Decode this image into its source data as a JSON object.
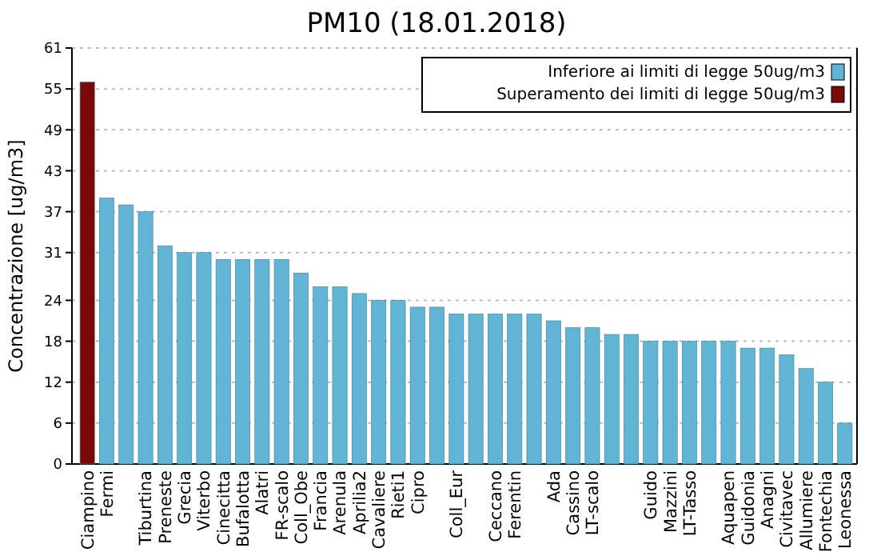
{
  "chart_data": {
    "type": "bar",
    "title": "PM10 (18.01.2018)",
    "ylabel": "Concentrazione [ug/m3]",
    "categories": [
      "Ciampino",
      "Fermi",
      null,
      "Tiburtina",
      "Preneste",
      "Grecia",
      "Viterbo",
      "Cinecitta",
      "Bufalotta",
      "Alatri",
      "FR-scalo",
      "Coll_Obe",
      "Francia",
      "Arenula",
      "Aprilia2",
      "Cavaliere",
      "Rieti1",
      "Cipro",
      null,
      "Coll_Eur",
      null,
      "Ceccano",
      "Ferentin",
      null,
      "Ada",
      "Cassino",
      "LT-scalo",
      null,
      null,
      "Guido",
      "Mazzini",
      "LT-Tasso",
      null,
      "Aquapen",
      "Guidonia",
      "Anagni",
      "Civitavec",
      "Allumiere",
      "Fontechia",
      "Leonessa"
    ],
    "series": [
      {
        "name": "Inferiore ai limiti di legge 50ug/m3",
        "color": "#62b4d4",
        "values": [
          null,
          39,
          38,
          37,
          32,
          31,
          31,
          30,
          30,
          30,
          30,
          28,
          26,
          26,
          25,
          24,
          24,
          23,
          23,
          22,
          22,
          22,
          22,
          22,
          21,
          20,
          20,
          19,
          19,
          18,
          18,
          18,
          18,
          18,
          17,
          17,
          16,
          14,
          12,
          6
        ]
      },
      {
        "name": "Superamento dei limiti di legge 50ug/m3",
        "color": "#7a0a0a",
        "values": [
          56,
          null,
          null,
          null,
          null,
          null,
          null,
          null,
          null,
          null,
          null,
          null,
          null,
          null,
          null,
          null,
          null,
          null,
          null,
          null,
          null,
          null,
          null,
          null,
          null,
          null,
          null,
          null,
          null,
          null,
          null,
          null,
          null,
          null,
          null,
          null,
          null,
          null,
          null,
          null
        ]
      }
    ],
    "ylim": [
      0,
      61
    ],
    "yticks": [
      0,
      6,
      12,
      18,
      24,
      31,
      37,
      43,
      49,
      55,
      61
    ],
    "grid": "y",
    "legend": "top right"
  }
}
